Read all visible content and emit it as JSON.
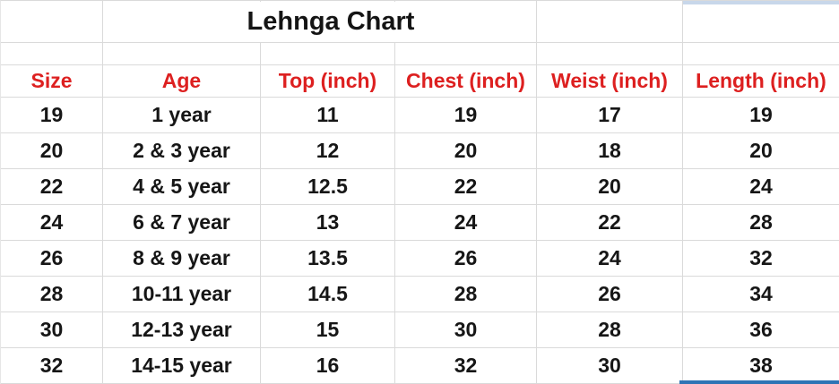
{
  "title": "Lehnga Chart",
  "table": {
    "headers": [
      "Size",
      "Age",
      "Top (inch)",
      "Chest (inch)",
      "Weist (inch)",
      "Length (inch)"
    ],
    "rows": [
      [
        "19",
        "1 year",
        "11",
        "19",
        "17",
        "19"
      ],
      [
        "20",
        "2 & 3 year",
        "12",
        "20",
        "18",
        "20"
      ],
      [
        "22",
        "4 & 5 year",
        "12.5",
        "22",
        "20",
        "24"
      ],
      [
        "24",
        "6 & 7 year",
        "13",
        "24",
        "22",
        "28"
      ],
      [
        "26",
        "8 & 9 year",
        "13.5",
        "26",
        "24",
        "32"
      ],
      [
        "28",
        "10-11 year",
        "14.5",
        "28",
        "26",
        "34"
      ],
      [
        "30",
        "12-13 year",
        "15",
        "30",
        "28",
        "36"
      ],
      [
        "32",
        "14-15 year",
        "16",
        "32",
        "30",
        "38"
      ]
    ]
  },
  "colors": {
    "header_text": "#dd2020",
    "body_text": "#161616",
    "gridline": "#dadada",
    "selection_border_blue": "#2e74b5",
    "column_highlight_blue": "#c8d7ea",
    "background": "#ffffff"
  }
}
